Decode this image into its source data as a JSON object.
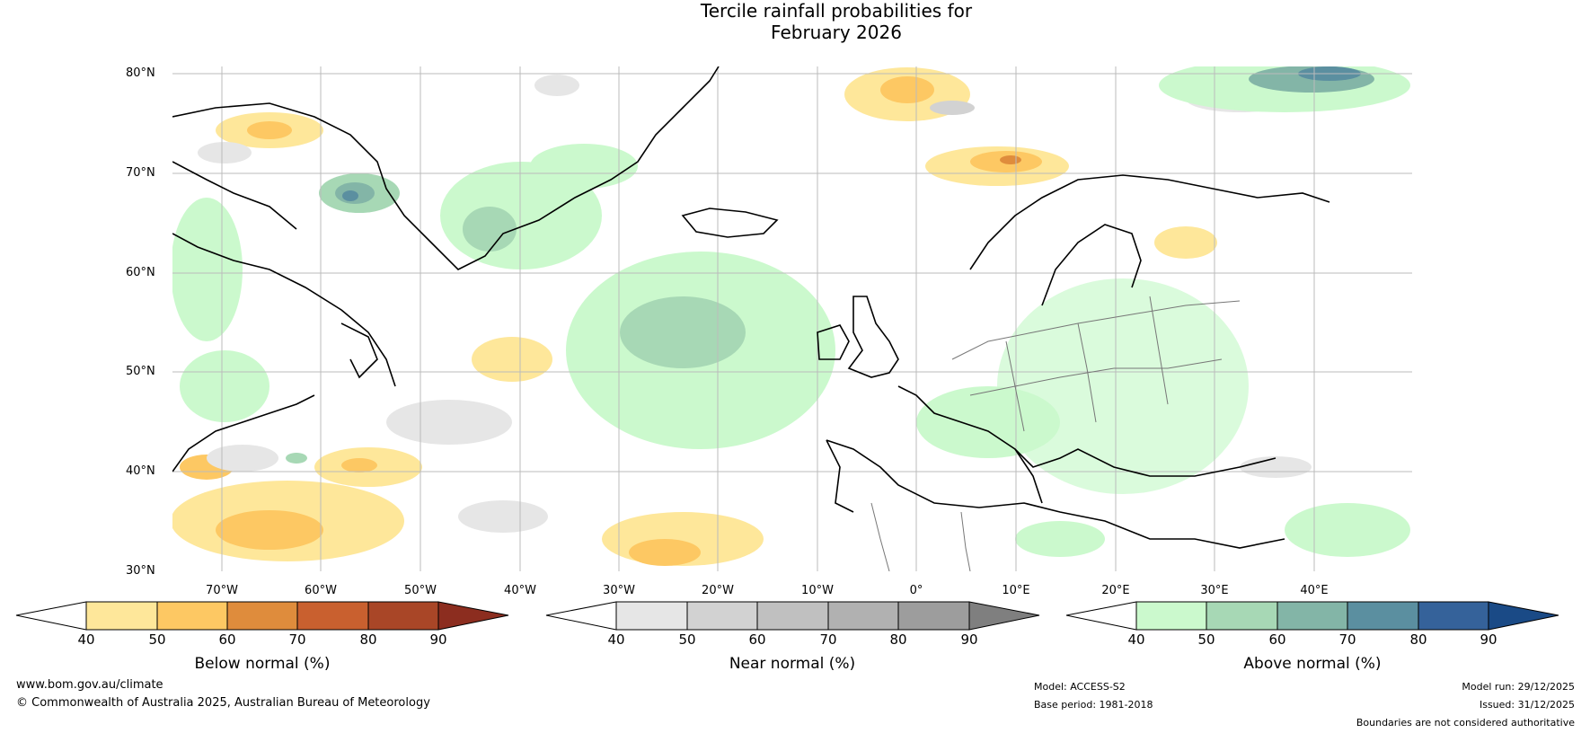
{
  "title": {
    "line1": "Tercile rainfall probabilities for",
    "line2": "February 2026"
  },
  "map": {
    "lat_labels": [
      "80°N",
      "70°N",
      "60°N",
      "50°N",
      "40°N",
      "30°N"
    ],
    "lon_labels": [
      "70°W",
      "60°W",
      "50°W",
      "40°W",
      "30°W",
      "20°W",
      "10°W",
      "0°",
      "10°E",
      "20°E",
      "30°E",
      "40°E"
    ]
  },
  "colorbars": [
    {
      "label": "Below normal (%)",
      "ticks": [
        "40",
        "50",
        "60",
        "70",
        "80",
        "90"
      ],
      "colors": [
        "#ffffff",
        "#fee79a",
        "#fdc863",
        "#df8c3c",
        "#c9602f",
        "#a94627",
        "#8c2d1f"
      ]
    },
    {
      "label": "Near normal (%)",
      "ticks": [
        "40",
        "50",
        "60",
        "70",
        "80",
        "90"
      ],
      "colors": [
        "#ffffff",
        "#e6e6e6",
        "#d2d2d2",
        "#c0c0c0",
        "#b1b1b1",
        "#9d9d9d",
        "#7f7f7f"
      ]
    },
    {
      "label": "Above normal (%)",
      "ticks": [
        "40",
        "50",
        "60",
        "70",
        "80",
        "90"
      ],
      "colors": [
        "#ffffff",
        "#cbf9cd",
        "#a7d8b5",
        "#83b5a7",
        "#5b8fa0",
        "#35629a",
        "#1a4a86"
      ]
    }
  ],
  "footer": {
    "website": "www.bom.gov.au/climate",
    "copyright": "© Commonwealth of Australia 2025, Australian Bureau of Meteorology",
    "model": "Model: ACCESS-S2",
    "base_period": "Base period: 1981-2018",
    "model_run": "Model run: 29/12/2025",
    "issued": "Issued: 31/12/2025",
    "disclaimer": "Boundaries are not considered authoritative"
  }
}
